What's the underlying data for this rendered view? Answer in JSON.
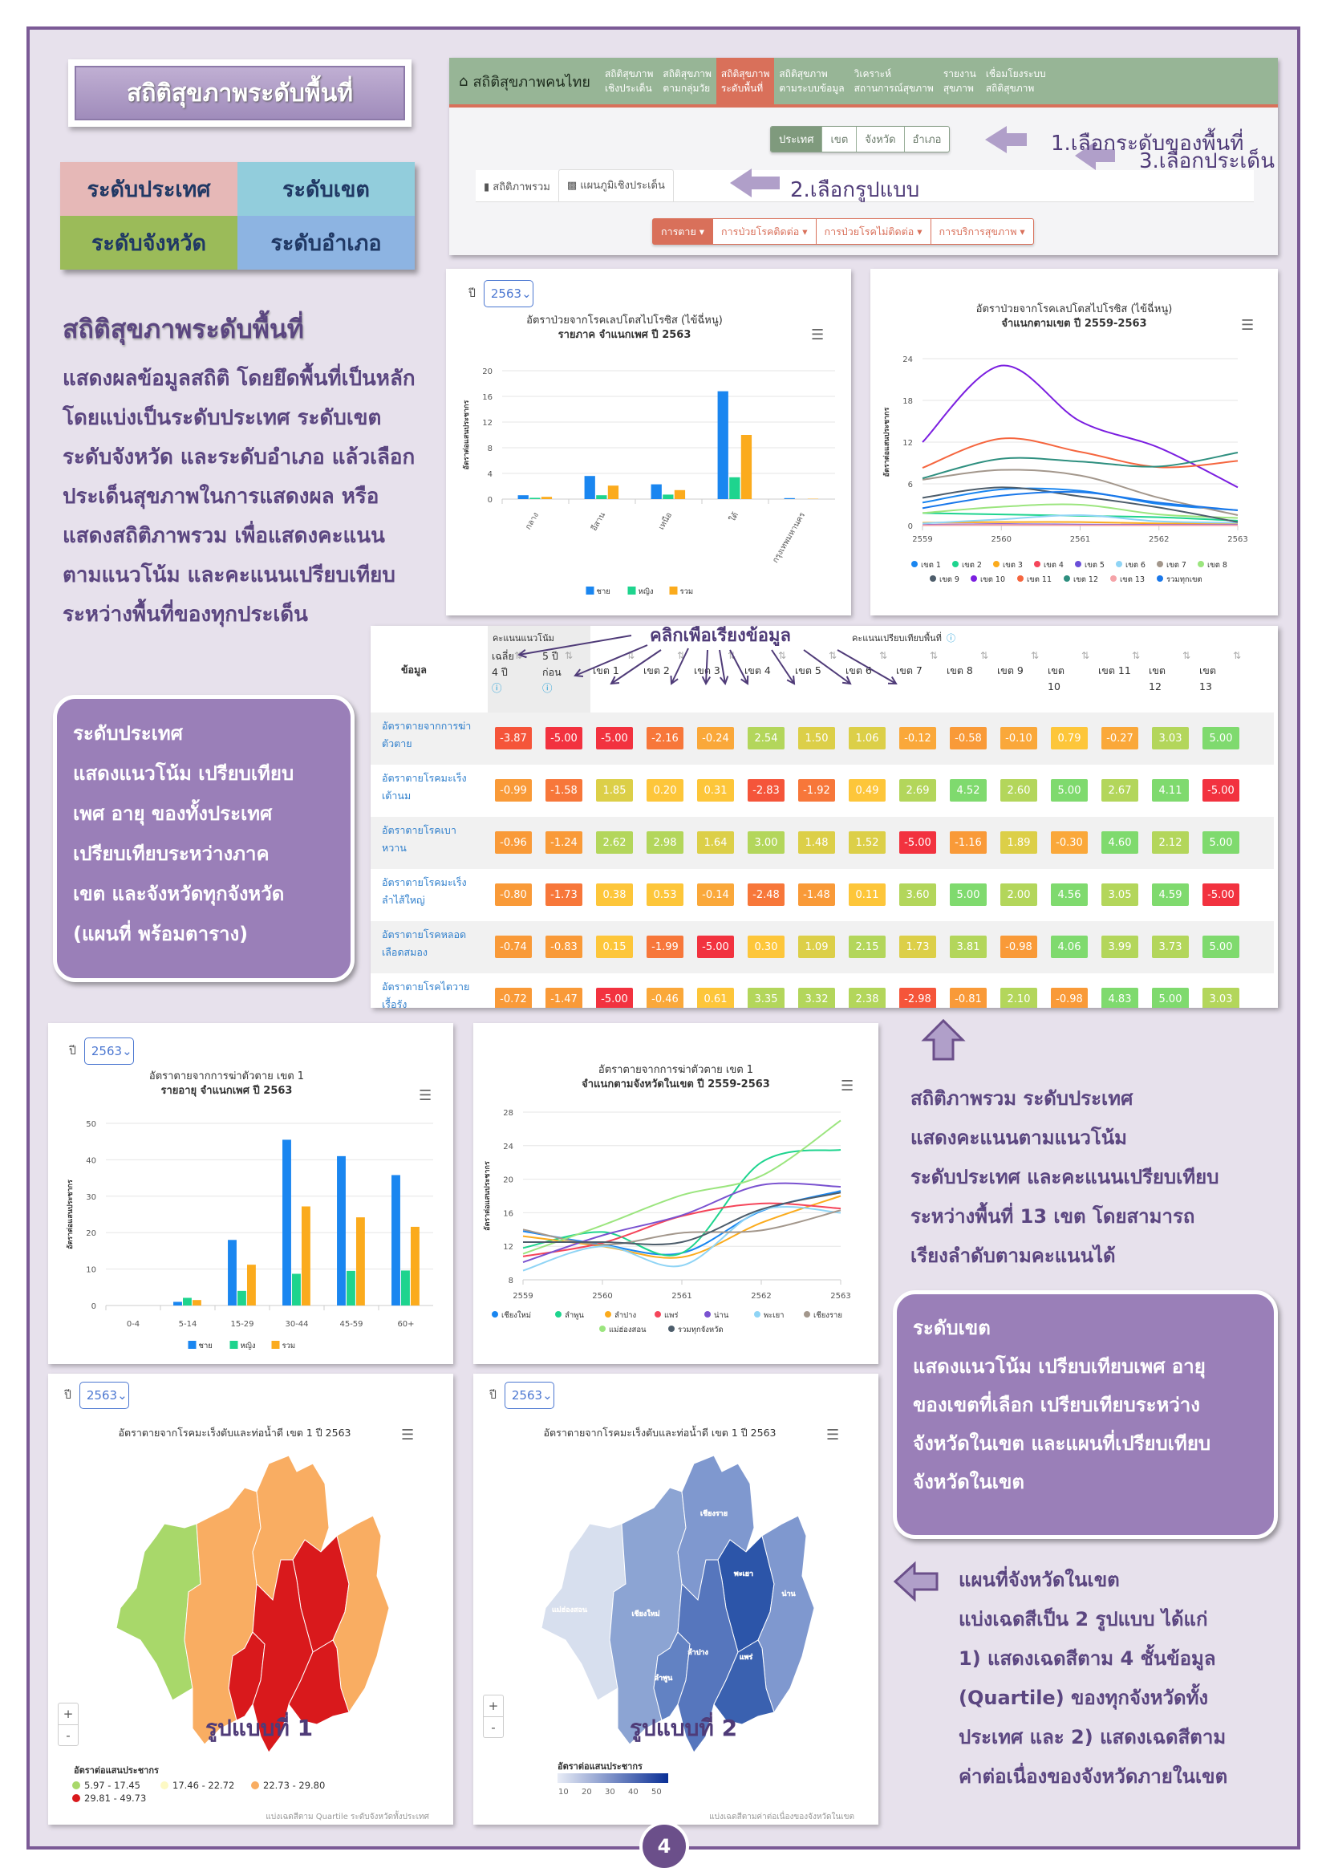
{
  "title": "สถิติสุขภาพระดับพื้นที่",
  "levels": [
    {
      "label": "ระดับประเทศ",
      "color": "#e6b8b7"
    },
    {
      "label": "ระดับเขต",
      "color": "#92cddc"
    },
    {
      "label": "ระดับจังหวัด",
      "color": "#9bbb59"
    },
    {
      "label": "ระดับอำเภอ",
      "color": "#8db4e2"
    }
  ],
  "left_section": {
    "heading": "สถิติสุขภาพระดับพื้นที่",
    "lines": [
      "แสดงผลข้อมูลสถิติ โดยยึดพื้นที่เป็นหลัก",
      "โดยแบ่งเป็นระดับประเทศ ระดับเขต",
      "ระดับจังหวัด และระดับอำเภอ แล้วเลือก",
      "ประเด็นสุขภาพในการแสดงผล หรือ",
      "แสดงสถิติภาพรวม เพื่อแสดงคะแนน",
      "ตามแนวโน้ม และคะแนนเปรียบเทียบ",
      "ระหว่างพื้นที่ของทุกประเด็น"
    ]
  },
  "app": {
    "brand": "สถิติสุขภาพคนไทย",
    "nav": [
      {
        "l1": "สถิติสุขภาพ",
        "l2": "เชิงประเด็น"
      },
      {
        "l1": "สถิติสุขภาพ",
        "l2": "ตามกลุ่มวัย"
      },
      {
        "l1": "สถิติสุขภาพ",
        "l2": "ระดับพื้นที่",
        "active": true
      },
      {
        "l1": "สถิติสุขภาพ",
        "l2": "ตามระบบข้อมูล"
      },
      {
        "l1": "วิเคราะห์",
        "l2": "สถานการณ์สุขภาพ"
      },
      {
        "l1": "รายงาน",
        "l2": "สุขภาพ"
      },
      {
        "l1": "เชื่อมโยงระบบ",
        "l2": "สถิติสุขภาพ"
      }
    ],
    "area_levels": [
      "ประเทศ",
      "เขต",
      "จังหวัด",
      "อำเภอ"
    ],
    "tabs": [
      "สถิติภาพรวม",
      "แผนภูมิเชิงประเด็น"
    ],
    "issues": [
      "การตาย",
      "การป่วยโรคติดต่อ",
      "การป่วยโรคไม่ติดต่อ",
      "การบริการสุขภาพ"
    ],
    "annotations": [
      "1.เลือกระดับของพื้นที่",
      "2.เลือกรูปแบบ",
      "3.เลือกประเด็น"
    ]
  },
  "year_label": "ปี",
  "year_value": "2563",
  "chart_data": [
    {
      "type": "bar",
      "title": "อัตราป่วยจากโรคเลปโตสไปโรซิส (ไข้ฉี่หนู)",
      "subtitle": "รายภาค จำแนกเพศ ปี 2563",
      "ylabel": "อัตราต่อแสนประชากร",
      "ylim": [
        0,
        20
      ],
      "yticks": [
        0,
        4,
        8,
        12,
        16,
        20
      ],
      "categories": [
        "กลาง",
        "อีสาน",
        "เหนือ",
        "ใต้",
        "กรุงเทพมหานคร"
      ],
      "series": [
        {
          "name": "ชาย",
          "color": "#1a86f0",
          "values": [
            0.6,
            3.6,
            2.3,
            16.8,
            0.15
          ]
        },
        {
          "name": "หญิง",
          "color": "#1ed48e",
          "values": [
            0.2,
            0.6,
            0.7,
            3.4,
            0.0
          ]
        },
        {
          "name": "รวม",
          "color": "#fbab1d",
          "values": [
            0.35,
            2.1,
            1.4,
            10.0,
            0.05
          ]
        }
      ],
      "rotate_labels": true
    },
    {
      "type": "line",
      "title": "อัตราป่วยจากโรคเลปโตสไปโรซิส (ไข้ฉี่หนู)",
      "subtitle": "จำแนกตามเขต ปี 2559-2563",
      "ylabel": "อัตราต่อแสนประชากร",
      "ylim": [
        0,
        24
      ],
      "yticks": [
        0,
        6,
        12,
        18,
        24
      ],
      "x": [
        "2559",
        "2560",
        "2561",
        "2562",
        "2563"
      ],
      "series": [
        {
          "name": "เขต 1",
          "color": "#1a86f0",
          "values": [
            3.3,
            5.2,
            5.0,
            3.1,
            2.2
          ]
        },
        {
          "name": "เขต 2",
          "color": "#1ed48e",
          "values": [
            1.8,
            1.6,
            1.4,
            1.2,
            0.7
          ]
        },
        {
          "name": "เขต 3",
          "color": "#fbab1d",
          "values": [
            0.4,
            0.5,
            0.5,
            0.3,
            0.3
          ]
        },
        {
          "name": "เขต 4",
          "color": "#f5455a",
          "values": [
            0.1,
            0.2,
            0.1,
            0.1,
            0.1
          ]
        },
        {
          "name": "เขต 5",
          "color": "#6a4fd8",
          "values": [
            0.1,
            0.2,
            0.15,
            0.1,
            0.1
          ]
        },
        {
          "name": "เขต 6",
          "color": "#8fd4f5",
          "values": [
            0.3,
            0.9,
            1.5,
            0.6,
            0.4
          ]
        },
        {
          "name": "เขต 7",
          "color": "#a3978c",
          "values": [
            6.6,
            8.0,
            7.2,
            4.0,
            1.5
          ]
        },
        {
          "name": "เขต 8",
          "color": "#9be57e",
          "values": [
            1.8,
            2.7,
            3.0,
            1.6,
            1.1
          ]
        },
        {
          "name": "เขต 9",
          "color": "#4d5d6b",
          "values": [
            4.0,
            5.5,
            4.2,
            2.6,
            0.5
          ]
        },
        {
          "name": "เขต 10",
          "color": "#7b1fe0",
          "values": [
            12.0,
            23.0,
            15.0,
            11.2,
            5.5
          ]
        },
        {
          "name": "เขต 11",
          "color": "#f5663f",
          "values": [
            8.3,
            12.5,
            10.6,
            8.4,
            9.3
          ]
        },
        {
          "name": "เขต 12",
          "color": "#2e8f7f",
          "values": [
            6.8,
            9.6,
            9.2,
            8.5,
            10.5
          ]
        },
        {
          "name": "เขต 13",
          "color": "#f5a3a8",
          "values": [
            0.05,
            0.1,
            0.05,
            0.05,
            0.05
          ]
        },
        {
          "name": "รวมทุกเขต",
          "color": "#1a78ea",
          "values": [
            2.5,
            4.3,
            4.8,
            3.3,
            2.2
          ]
        }
      ],
      "legend_rows": [
        8,
        6
      ]
    },
    {
      "type": "bar",
      "title": "อัตราตายจากการฆ่าตัวตาย เขต 1",
      "subtitle": "รายอายุ จำแนกเพศ ปี 2563",
      "ylabel": "อัตราต่อแสนประชากร",
      "ylim": [
        0,
        50
      ],
      "yticks": [
        0,
        10,
        20,
        30,
        40,
        50
      ],
      "categories": [
        "0-4",
        "5-14",
        "15-29",
        "30-44",
        "45-59",
        "60+"
      ],
      "series": [
        {
          "name": "ชาย",
          "color": "#1a86f0",
          "values": [
            0,
            1.0,
            18.0,
            45.5,
            41.0,
            35.8
          ]
        },
        {
          "name": "หญิง",
          "color": "#1ed48e",
          "values": [
            0,
            2.1,
            4.0,
            8.7,
            9.5,
            9.6
          ]
        },
        {
          "name": "รวม",
          "color": "#fbab1d",
          "values": [
            0,
            1.5,
            11.2,
            27.2,
            24.2,
            21.6
          ]
        }
      ],
      "rotate_labels": false
    },
    {
      "type": "line",
      "title": "อัตราตายจากการฆ่าตัวตาย เขต 1",
      "subtitle": "จำแนกตามจังหวัดในเขต ปี 2559-2563",
      "ylabel": "อัตราต่อแสนประชากร",
      "ylim": [
        8,
        28
      ],
      "yticks": [
        8,
        12,
        16,
        20,
        24,
        28
      ],
      "x": [
        "2559",
        "2560",
        "2561",
        "2562",
        "2563"
      ],
      "series": [
        {
          "name": "เชียงใหม่",
          "color": "#1a86f0",
          "values": [
            13.8,
            12.2,
            11.2,
            16.2,
            18.6
          ]
        },
        {
          "name": "ลำพูน",
          "color": "#1ed48e",
          "values": [
            11.8,
            13.7,
            11.2,
            22.0,
            23.5
          ]
        },
        {
          "name": "ลำปาง",
          "color": "#fbab1d",
          "values": [
            13.2,
            12.0,
            10.7,
            14.8,
            18.0
          ]
        },
        {
          "name": "แพร่",
          "color": "#f5455a",
          "values": [
            10.8,
            12.4,
            15.6,
            17.1,
            16.5
          ]
        },
        {
          "name": "น่าน",
          "color": "#7a52d0",
          "values": [
            10.1,
            13.3,
            15.7,
            19.3,
            19.1
          ]
        },
        {
          "name": "พะเยา",
          "color": "#8fd4f5",
          "values": [
            9.1,
            12.0,
            9.7,
            16.3,
            16.0
          ]
        },
        {
          "name": "เชียงราย",
          "color": "#a3978c",
          "values": [
            14.0,
            12.2,
            13.6,
            13.9,
            16.3
          ]
        },
        {
          "name": "แม่ฮ่องสอน",
          "color": "#9be57e",
          "values": [
            11.1,
            14.5,
            18.1,
            20.4,
            27.0
          ]
        },
        {
          "name": "รวมทุกจังหวัด",
          "color": "#4d5d6b",
          "values": [
            12.5,
            12.5,
            12.5,
            16.4,
            18.4
          ]
        }
      ],
      "legend_rows": [
        7,
        2
      ]
    }
  ],
  "table": {
    "annotation": "คลิกเพื่อเรียงข้อมูล",
    "group_trend": "คะแนนแนวโน้ม",
    "group_compare": "คะแนนเปรียบเทียบพื้นที่",
    "col_data": "ข้อมูล",
    "columns": [
      [
        "เฉลี่ย",
        "4 ปี"
      ],
      [
        "5 ปี",
        "ก่อน"
      ],
      [
        "",
        "เขต 1"
      ],
      [
        "",
        "เขต 2"
      ],
      [
        "",
        "เขต 3"
      ],
      [
        "",
        "เขต 4"
      ],
      [
        "",
        "เขต 5"
      ],
      [
        "",
        "เขต 6"
      ],
      [
        "",
        "เขต 7"
      ],
      [
        "",
        "เขต 8"
      ],
      [
        "",
        "เขต 9"
      ],
      [
        "เขต",
        "10"
      ],
      [
        "",
        "เขต 11"
      ],
      [
        "เขต",
        "12"
      ],
      [
        "เขต",
        "13"
      ]
    ],
    "rows": [
      {
        "label": [
          "อัตราตายจากการฆ่า",
          "ตัวตาย"
        ],
        "values": [
          "-3.87",
          "-5.00",
          "-5.00",
          "-2.16",
          "-0.24",
          "2.54",
          "1.50",
          "1.06",
          "-0.12",
          "-0.58",
          "-0.10",
          "0.79",
          "-0.27",
          "3.03",
          "5.00"
        ]
      },
      {
        "label": [
          "อัตราตายโรคมะเร็ง",
          "เต้านม"
        ],
        "values": [
          "-0.99",
          "-1.58",
          "1.85",
          "0.20",
          "0.31",
          "-2.83",
          "-1.92",
          "0.49",
          "2.69",
          "4.52",
          "2.60",
          "5.00",
          "2.67",
          "4.11",
          "-5.00"
        ]
      },
      {
        "label": [
          "อัตราตายโรคเบา",
          "หวาน"
        ],
        "values": [
          "-0.96",
          "-1.24",
          "2.62",
          "2.98",
          "1.64",
          "3.00",
          "1.48",
          "1.52",
          "-5.00",
          "-1.16",
          "1.89",
          "-0.30",
          "4.60",
          "2.12",
          "5.00"
        ]
      },
      {
        "label": [
          "อัตราตายโรคมะเร็ง",
          "ลำไส้ใหญ่"
        ],
        "values": [
          "-0.80",
          "-1.73",
          "0.38",
          "0.53",
          "-0.14",
          "-2.48",
          "-1.48",
          "0.11",
          "3.60",
          "5.00",
          "2.00",
          "4.56",
          "3.05",
          "4.59",
          "-5.00"
        ]
      },
      {
        "label": [
          "อัตราตายโรคหลอด",
          "เลือดสมอง"
        ],
        "values": [
          "-0.74",
          "-0.83",
          "0.15",
          "-1.99",
          "-5.00",
          "0.30",
          "1.09",
          "2.15",
          "1.73",
          "3.81",
          "-0.98",
          "4.06",
          "3.99",
          "3.73",
          "5.00"
        ]
      },
      {
        "label": [
          "อัตราตายโรคไตวาย",
          "เรื้อรัง"
        ],
        "values": [
          "-0.72",
          "-1.47",
          "-5.00",
          "-0.46",
          "0.61",
          "3.35",
          "3.32",
          "2.38",
          "-2.98",
          "-0.81",
          "2.10",
          "-0.98",
          "4.83",
          "5.00",
          "3.03"
        ]
      }
    ]
  },
  "box_country": {
    "lines": [
      "ระดับประเทศ",
      "แสดงแนวโน้ม เปรียบเทียบ",
      "เพศ อายุ ของทั้งประเทศ",
      "เปรียบเทียบระหว่างภาค",
      "เขต และจังหวัดทุกจังหวัด",
      "(แผนที่ พร้อมตาราง)"
    ]
  },
  "overview_text": {
    "heading": "สถิติภาพรวม ระดับประเทศ",
    "lines": [
      "แสดงคะแนนตามแนวโน้ม",
      "ระดับประเทศ และคะแนนเปรียบเทียบ",
      "ระหว่างพื้นที่ 13 เขต โดยสามารถ",
      "เรียงลำดับตามคะแนนได้"
    ]
  },
  "box_region": {
    "lines": [
      "ระดับเขต",
      "แสดงแนวโน้ม เปรียบเทียบเพศ อายุ",
      "ของเขตที่เลือก เปรียบเทียบระหว่าง",
      "จังหวัดในเขต และแผนที่เปรียบเทียบ",
      "จังหวัดในเขต"
    ]
  },
  "map_text": {
    "heading": "แผนที่จังหวัดในเขต",
    "lines": [
      "แบ่งเฉดสีเป็น 2 รูปแบบ ได้แก่",
      "1) แสดงเฉดสีตาม 4 ชั้นข้อมูล",
      "(Quartile) ของทุกจังหวัดทั้ง",
      "ประเทศ และ 2) แสดงเฉดสีตาม",
      "ค่าต่อเนื่องของจังหวัดภายในเขต"
    ]
  },
  "maps": {
    "title": "อัตราตายจากโรคมะเร็งตับและท่อน้ำดี เขต 1 ปี 2563",
    "legend_title": "อัตราต่อแสนประชากร",
    "zoom_in": "+",
    "zoom_out": "-",
    "map1": {
      "pattern_label": "รูปแบบที่ 1",
      "classes": [
        {
          "label": "5.97 - 17.45",
          "color": "#a8d86a"
        },
        {
          "label": "17.46 - 22.72",
          "color": "#fdf9c4"
        },
        {
          "label": "22.73 - 29.80",
          "color": "#f9ad62"
        },
        {
          "label": "29.81 - 49.73",
          "color": "#d9191c"
        }
      ],
      "footnote": "แบ่งเฉดสีตาม Quartile ระดับจังหวัดทั้งประเทศ",
      "province_colors": {
        "mhs": "#a8d86a",
        "cm": "#f9ad62",
        "cr": "#f9ad62",
        "nan": "#f9ad62",
        "py": "#d9191c",
        "lpn": "#d9191c",
        "lp": "#d9191c",
        "pr": "#d9191c"
      }
    },
    "map2": {
      "pattern_label": "รูปแบบที่ 2",
      "scale_ticks": [
        "10",
        "20",
        "30",
        "40",
        "50"
      ],
      "footnote": "แบ่งเฉดสีตามค่าต่อเนื่องของจังหวัดในเขต",
      "province_colors": {
        "mhs": "#d7dfee",
        "cm": "#8ca4d3",
        "cr": "#7f98cf",
        "nan": "#7f98cf",
        "py": "#2c55a9",
        "lpn": "#6282c3",
        "lp": "#5676bd",
        "pr": "#3a61b0"
      },
      "province_labels": {
        "mhs": "แม่ฮ่องสอน",
        "cm": "เชียงใหม่",
        "cr": "เชียงราย",
        "py": "พะเยา",
        "nan": "น่าน",
        "lpn": "ลำพูน",
        "lp": "ลำปาง",
        "pr": "แพร่"
      }
    }
  },
  "page_number": "4"
}
